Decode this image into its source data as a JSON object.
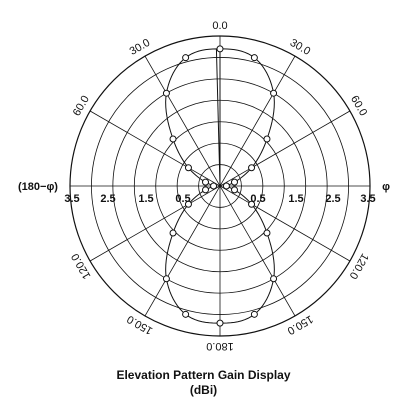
{
  "chart_data": {
    "type": "polar",
    "title": "Elevation Pattern Gain Display",
    "unit_label": "(dBi)",
    "radial_range": [
      0,
      3.5
    ],
    "radial_ticks": [
      "3.5",
      "2.5",
      "1.5",
      "0.5",
      "0.5",
      "1.5",
      "2.5",
      "3.5"
    ],
    "angle_labels": [
      "0.0",
      "30.0",
      "60.0",
      "30.0",
      "60.0",
      "120.0",
      "150.0",
      "180.0",
      "150.0",
      "120.0"
    ],
    "left_axis_label": "(180−φ)",
    "right_axis_label": "φ",
    "grid": true,
    "series": [
      {
        "marker": "circle",
        "points": [
          {
            "angle": 0,
            "r": 3.2
          },
          {
            "angle": 15,
            "r": 3.1
          },
          {
            "angle": 30,
            "r": 2.5
          },
          {
            "angle": 45,
            "r": 1.55
          },
          {
            "angle": 60,
            "r": 0.85
          },
          {
            "angle": 75,
            "r": 0.35
          },
          {
            "angle": 90,
            "r": 0.15
          },
          {
            "angle": 105,
            "r": 0.35
          },
          {
            "angle": 120,
            "r": 0.85
          },
          {
            "angle": 135,
            "r": 1.55
          },
          {
            "angle": 150,
            "r": 2.5
          },
          {
            "angle": 165,
            "r": 3.1
          },
          {
            "angle": 180,
            "r": 3.2
          },
          {
            "angle": 195,
            "r": 3.1
          },
          {
            "angle": 210,
            "r": 2.5
          },
          {
            "angle": 225,
            "r": 1.55
          },
          {
            "angle": 240,
            "r": 0.85
          },
          {
            "angle": 255,
            "r": 0.35
          },
          {
            "angle": 270,
            "r": 0.15
          },
          {
            "angle": 285,
            "r": 0.35
          },
          {
            "angle": 300,
            "r": 0.85
          },
          {
            "angle": 315,
            "r": 1.55
          },
          {
            "angle": 330,
            "r": 2.5
          },
          {
            "angle": 345,
            "r": 3.1
          }
        ]
      }
    ]
  }
}
